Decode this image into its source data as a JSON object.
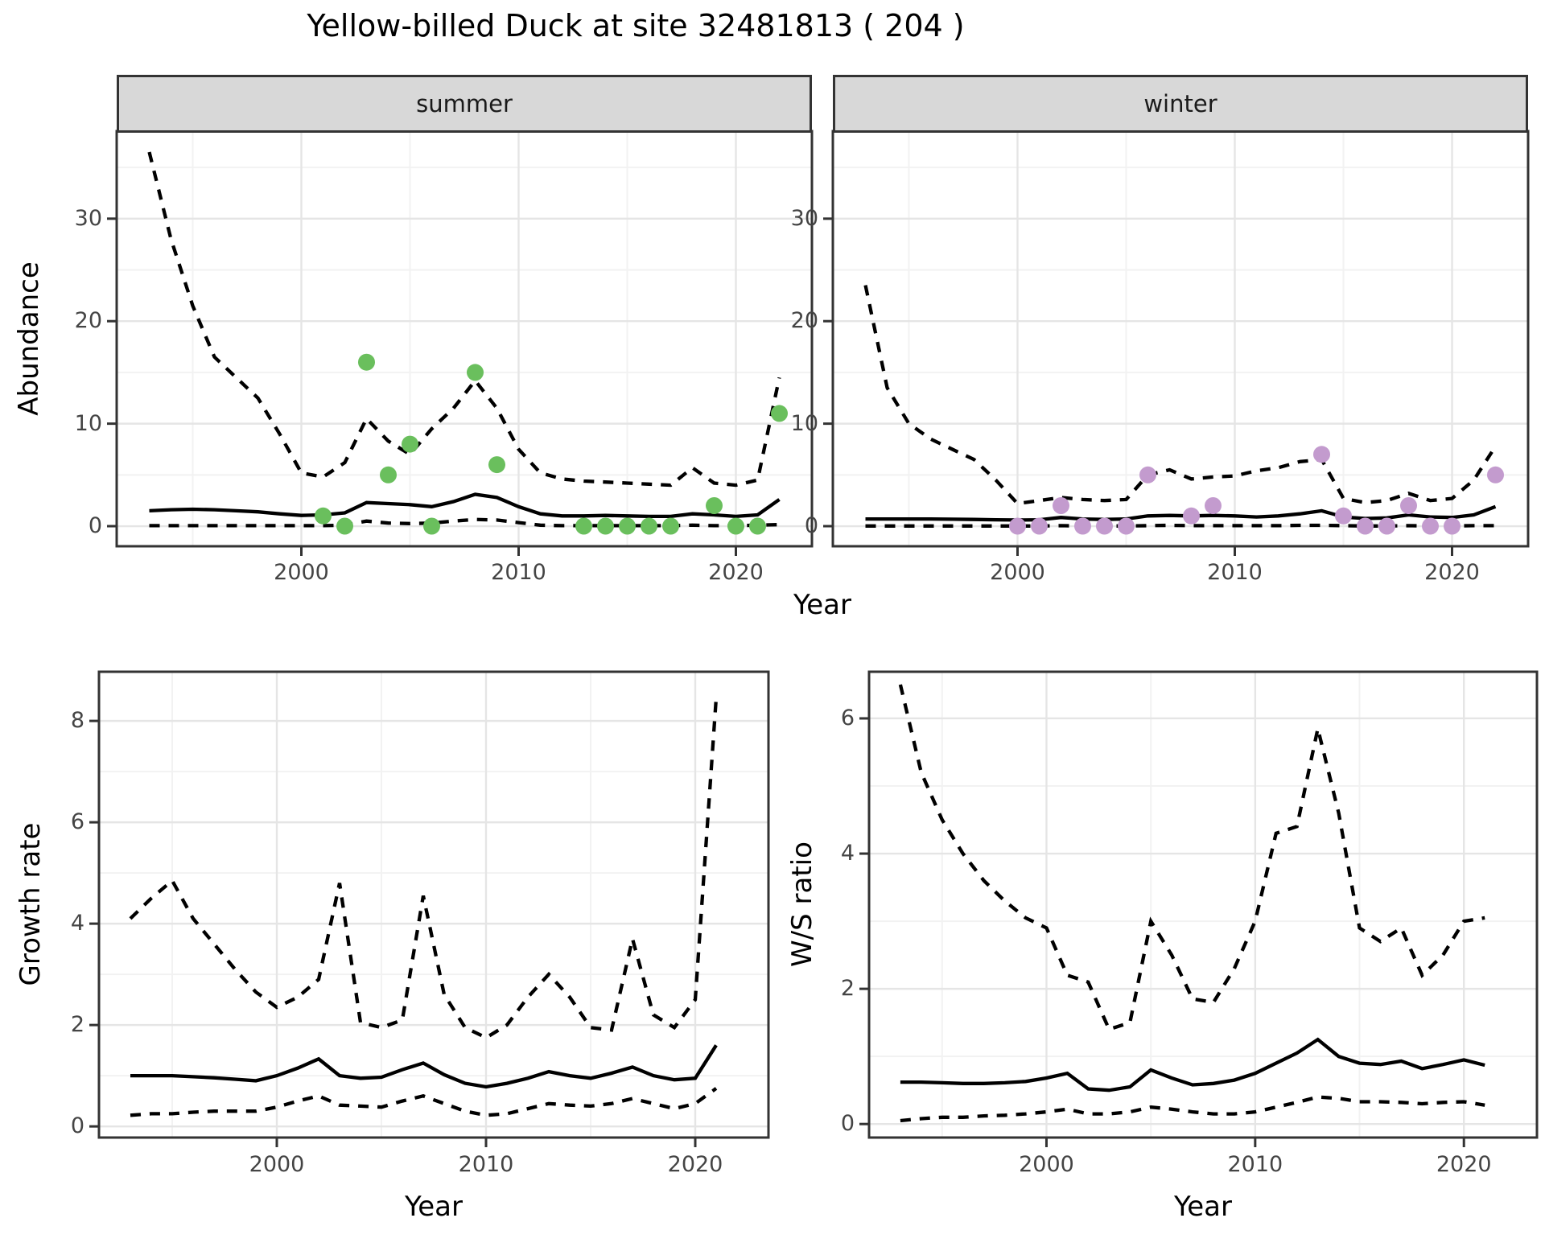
{
  "title": "Yellow-billed Duck at site 32481813 ( 204 )",
  "colors": {
    "line": "#000000",
    "summer_points": "#6abf5d",
    "winter_points": "#c39bce",
    "strip_bg": "#d8d8d8",
    "panel_border": "#333333",
    "grid_major": "#e5e5e5",
    "grid_minor": "#f2f2f2",
    "tick_text": "#444444"
  },
  "chart_data": [
    {
      "id": "abundance-summer",
      "type": "line",
      "facet_label": "summer",
      "ylabel": "Abundance",
      "xlabel": "Year",
      "x_range": [
        1991.5,
        2023.5
      ],
      "y_range": [
        -1.96,
        38.54
      ],
      "x_major": [
        2000,
        2010,
        2020
      ],
      "x_minor": [
        1995,
        2005,
        2015
      ],
      "y_major": [
        0,
        10,
        20,
        30
      ],
      "y_minor": [
        5,
        15,
        25,
        35
      ],
      "grid": true,
      "legend": "none",
      "years": [
        1993,
        1994,
        1995,
        1996,
        1997,
        1998,
        1999,
        2000,
        2001,
        2002,
        2003,
        2004,
        2005,
        2006,
        2007,
        2008,
        2009,
        2010,
        2011,
        2012,
        2013,
        2014,
        2015,
        2016,
        2017,
        2018,
        2019,
        2020,
        2021,
        2022
      ],
      "series": [
        {
          "name": "upper_ci",
          "style": "dashed",
          "values": [
            36.5,
            28,
            21.5,
            16.5,
            14.5,
            12.5,
            9,
            5.2,
            4.8,
            6.2,
            10.5,
            8.3,
            7,
            9.5,
            11.5,
            14.2,
            11.5,
            7.5,
            5.2,
            4.6,
            4.4,
            4.3,
            4.2,
            4.1,
            4.0,
            5.7,
            4.2,
            4.0,
            4.5,
            14.5
          ]
        },
        {
          "name": "median",
          "style": "solid",
          "values": [
            1.5,
            1.6,
            1.65,
            1.6,
            1.5,
            1.4,
            1.2,
            1.05,
            1.1,
            1.3,
            2.3,
            2.2,
            2.1,
            1.9,
            2.4,
            3.1,
            2.8,
            1.9,
            1.2,
            1.0,
            1.0,
            1.05,
            1.0,
            0.95,
            0.95,
            1.2,
            1.1,
            0.95,
            1.1,
            2.6
          ]
        },
        {
          "name": "lower_ci",
          "style": "dashed",
          "values": [
            0.05,
            0.05,
            0.05,
            0.05,
            0.05,
            0.05,
            0.05,
            0.05,
            0.05,
            0.1,
            0.5,
            0.3,
            0.25,
            0.3,
            0.5,
            0.65,
            0.6,
            0.35,
            0.1,
            0.05,
            0.05,
            0.05,
            0.05,
            0.05,
            0.05,
            0.1,
            0.05,
            0.05,
            0.1,
            0.15
          ]
        }
      ],
      "points": {
        "name": "observed_counts",
        "color": "#6abf5d",
        "years": [
          2001,
          2002,
          2003,
          2004,
          2005,
          2006,
          2008,
          2009,
          2013,
          2014,
          2015,
          2016,
          2017,
          2019,
          2020,
          2021,
          2022
        ],
        "values": [
          1,
          0,
          16,
          5,
          8,
          0,
          15,
          6,
          0,
          0,
          0,
          0,
          0,
          2,
          0,
          0,
          11
        ]
      }
    },
    {
      "id": "abundance-winter",
      "type": "line",
      "facet_label": "winter",
      "ylabel": "",
      "xlabel": "Year",
      "x_range": [
        1991.5,
        2023.5
      ],
      "y_range": [
        -1.96,
        38.54
      ],
      "x_major": [
        2000,
        2010,
        2020
      ],
      "x_minor": [
        1995,
        2005,
        2015
      ],
      "y_major": [
        0,
        10,
        20,
        30
      ],
      "y_minor": [
        5,
        15,
        25,
        35
      ],
      "grid": true,
      "legend": "none",
      "years": [
        1993,
        1994,
        1995,
        1996,
        1997,
        1998,
        1999,
        2000,
        2001,
        2002,
        2003,
        2004,
        2005,
        2006,
        2007,
        2008,
        2009,
        2010,
        2011,
        2012,
        2013,
        2014,
        2015,
        2016,
        2017,
        2018,
        2019,
        2020,
        2021,
        2022
      ],
      "series": [
        {
          "name": "upper_ci",
          "style": "dashed",
          "values": [
            23.5,
            13.5,
            10,
            8.5,
            7.5,
            6.5,
            4.5,
            2.2,
            2.5,
            2.8,
            2.6,
            2.5,
            2.6,
            5.0,
            5.5,
            4.6,
            4.8,
            4.9,
            5.4,
            5.7,
            6.3,
            6.5,
            2.7,
            2.3,
            2.5,
            3.2,
            2.5,
            2.7,
            4.5,
            7.8
          ]
        },
        {
          "name": "median",
          "style": "solid",
          "values": [
            0.7,
            0.7,
            0.7,
            0.7,
            0.68,
            0.65,
            0.62,
            0.6,
            0.62,
            0.85,
            0.7,
            0.65,
            0.7,
            1.0,
            1.05,
            1.0,
            1.05,
            1.0,
            0.9,
            1.0,
            1.2,
            1.5,
            0.9,
            0.75,
            0.8,
            1.1,
            0.9,
            0.85,
            1.1,
            1.9
          ]
        },
        {
          "name": "lower_ci",
          "style": "dashed",
          "values": [
            0.02,
            0.02,
            0.02,
            0.02,
            0.02,
            0.02,
            0.02,
            0.02,
            0.02,
            0.05,
            0.02,
            0.02,
            0.02,
            0.05,
            0.08,
            0.05,
            0.05,
            0.05,
            0.05,
            0.05,
            0.08,
            0.08,
            0.05,
            0.02,
            0.02,
            0.05,
            0.02,
            0.02,
            0.05,
            0.05
          ]
        }
      ],
      "points": {
        "name": "observed_counts",
        "color": "#c39bce",
        "years": [
          2000,
          2001,
          2002,
          2003,
          2004,
          2005,
          2006,
          2008,
          2009,
          2014,
          2015,
          2016,
          2017,
          2018,
          2019,
          2020,
          2022
        ],
        "values": [
          0,
          0,
          2,
          0,
          0,
          0,
          5,
          1,
          2,
          7,
          1,
          0,
          0,
          2,
          0,
          0,
          5
        ]
      }
    },
    {
      "id": "growth-rate",
      "type": "line",
      "facet_label": "",
      "ylabel": "Growth rate",
      "xlabel": "Year",
      "x_range": [
        1991.5,
        2023.5
      ],
      "y_range": [
        -0.22,
        8.97
      ],
      "x_major": [
        2000,
        2010,
        2020
      ],
      "x_minor": [
        1995,
        2005,
        2015
      ],
      "y_major": [
        0,
        2,
        4,
        6,
        8
      ],
      "y_minor": [
        1,
        3,
        5,
        7
      ],
      "grid": true,
      "legend": "none",
      "years": [
        1993,
        1994,
        1995,
        1996,
        1997,
        1998,
        1999,
        2000,
        2001,
        2002,
        2003,
        2004,
        2005,
        2006,
        2007,
        2008,
        2009,
        2010,
        2011,
        2012,
        2013,
        2014,
        2015,
        2016,
        2017,
        2018,
        2019,
        2020,
        2021
      ],
      "series": [
        {
          "name": "upper_ci",
          "style": "dashed",
          "values": [
            4.1,
            4.5,
            4.85,
            4.1,
            3.6,
            3.1,
            2.65,
            2.35,
            2.55,
            2.9,
            4.8,
            2.05,
            1.95,
            2.1,
            4.55,
            2.6,
            1.95,
            1.75,
            2.0,
            2.55,
            3.0,
            2.55,
            1.95,
            1.9,
            3.7,
            2.2,
            1.95,
            2.5,
            8.45
          ]
        },
        {
          "name": "median",
          "style": "solid",
          "values": [
            1.0,
            1.0,
            1.0,
            0.98,
            0.96,
            0.93,
            0.9,
            1.0,
            1.15,
            1.33,
            1.0,
            0.95,
            0.97,
            1.12,
            1.25,
            1.02,
            0.85,
            0.78,
            0.85,
            0.95,
            1.08,
            1.0,
            0.95,
            1.05,
            1.17,
            1.0,
            0.92,
            0.95,
            1.6
          ]
        },
        {
          "name": "lower_ci",
          "style": "dashed",
          "values": [
            0.22,
            0.25,
            0.25,
            0.28,
            0.3,
            0.3,
            0.3,
            0.38,
            0.5,
            0.6,
            0.42,
            0.4,
            0.38,
            0.5,
            0.6,
            0.45,
            0.3,
            0.22,
            0.25,
            0.35,
            0.45,
            0.42,
            0.4,
            0.45,
            0.55,
            0.45,
            0.35,
            0.45,
            0.75
          ]
        }
      ],
      "points": null
    },
    {
      "id": "ws-ratio",
      "type": "line",
      "facet_label": "",
      "ylabel": "W/S ratio",
      "xlabel": "Year",
      "x_range": [
        1991.5,
        2023.5
      ],
      "y_range": [
        -0.2,
        6.69
      ],
      "x_major": [
        2000,
        2010,
        2020
      ],
      "x_minor": [
        1995,
        2005,
        2015
      ],
      "y_major": [
        0,
        2,
        4,
        6
      ],
      "y_minor": [
        1,
        3,
        5
      ],
      "grid": true,
      "legend": "none",
      "years": [
        1993,
        1994,
        1995,
        1996,
        1997,
        1998,
        1999,
        2000,
        2001,
        2002,
        2003,
        2004,
        2005,
        2006,
        2007,
        2008,
        2009,
        2010,
        2011,
        2012,
        2013,
        2014,
        2015,
        2016,
        2017,
        2018,
        2019,
        2020,
        2021
      ],
      "series": [
        {
          "name": "upper_ci",
          "style": "dashed",
          "values": [
            6.5,
            5.2,
            4.5,
            4.0,
            3.6,
            3.3,
            3.05,
            2.9,
            2.2,
            2.1,
            1.4,
            1.5,
            3.0,
            2.5,
            1.85,
            1.8,
            2.3,
            3.0,
            4.3,
            4.4,
            5.85,
            4.6,
            2.9,
            2.7,
            2.9,
            2.2,
            2.5,
            3.0,
            3.05
          ]
        },
        {
          "name": "median",
          "style": "solid",
          "values": [
            0.62,
            0.62,
            0.61,
            0.6,
            0.6,
            0.61,
            0.63,
            0.68,
            0.75,
            0.52,
            0.5,
            0.55,
            0.8,
            0.68,
            0.58,
            0.6,
            0.65,
            0.75,
            0.9,
            1.05,
            1.25,
            1.0,
            0.9,
            0.88,
            0.93,
            0.82,
            0.88,
            0.95,
            0.87
          ]
        },
        {
          "name": "lower_ci",
          "style": "dashed",
          "values": [
            0.05,
            0.08,
            0.1,
            0.1,
            0.12,
            0.13,
            0.15,
            0.18,
            0.22,
            0.15,
            0.15,
            0.18,
            0.25,
            0.22,
            0.18,
            0.15,
            0.15,
            0.18,
            0.25,
            0.32,
            0.4,
            0.38,
            0.33,
            0.33,
            0.32,
            0.3,
            0.32,
            0.33,
            0.28
          ]
        }
      ],
      "points": null
    }
  ]
}
